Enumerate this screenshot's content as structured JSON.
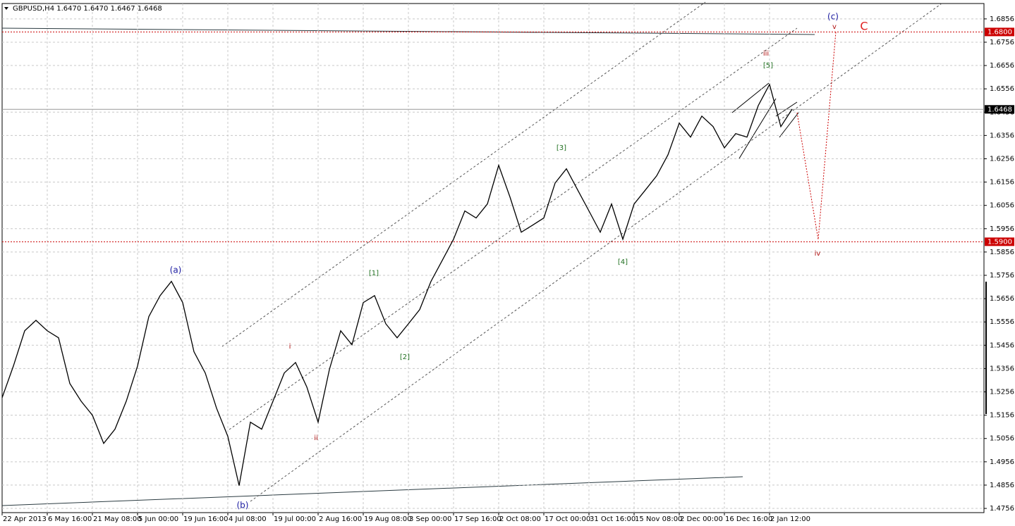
{
  "chart_data": {
    "type": "line",
    "title": "GBPUSD,H4  1.6470 1.6470 1.6467 1.6468",
    "categories": [
      "22 Apr 2013",
      null,
      null,
      null,
      "6 May 16:00",
      null,
      null,
      null,
      "21 May 08:00",
      null,
      null,
      null,
      "5 Jun 00:00",
      null,
      null,
      null,
      "19 Jun 16:00",
      null,
      null,
      null,
      "4 Jul 08:00",
      null,
      null,
      null,
      "19 Jul 00:00",
      null,
      null,
      null,
      "2 Aug 16:00",
      null,
      null,
      null,
      "19 Aug 08:00",
      null,
      null,
      null,
      "3 Sep 00:00",
      null,
      null,
      null,
      "17 Sep 16:00",
      null,
      null,
      null,
      "2 Oct 08:00",
      null,
      null,
      null,
      "17 Oct 00:00",
      null,
      null,
      null,
      "31 Oct 16:00",
      null,
      null,
      null,
      "15 Nov 08:00",
      null,
      null,
      null,
      "2 Dec 00:00",
      null,
      null,
      null,
      "16 Dec 16:00",
      null,
      null,
      null,
      "2 Jan 12:00",
      null,
      null,
      null,
      null,
      null,
      null,
      null,
      null,
      null,
      null,
      null,
      null,
      null,
      null,
      null,
      null,
      null,
      null,
      null
    ],
    "series": [
      {
        "name": "GBPUSD",
        "color": "#000000",
        "values": [
          1.5231,
          1.5367,
          1.5518,
          1.5563,
          1.5518,
          1.5488,
          1.5292,
          1.5216,
          1.5156,
          1.5035,
          1.5096,
          1.5216,
          1.5367,
          1.5579,
          1.5669,
          1.573,
          1.5639,
          1.5428,
          1.5337,
          1.5186,
          1.5065,
          1.4854,
          1.5126,
          1.5096,
          1.5216,
          1.5337,
          1.5382,
          1.5277,
          1.5126,
          1.5352,
          1.5518,
          1.5458,
          1.5639,
          1.5669,
          1.5548,
          1.5488,
          1.5548,
          1.5609,
          1.573,
          1.582,
          1.5911,
          1.6032,
          1.6002,
          1.6062,
          1.6228,
          1.6092,
          1.5941,
          1.5971,
          1.6002,
          1.6152,
          1.6213,
          1.6122,
          1.6032,
          1.5941,
          1.6062,
          1.5911,
          1.6062,
          1.6122,
          1.6183,
          1.6273,
          1.6409,
          1.6349,
          1.6439,
          1.6394,
          1.6303,
          1.6364,
          1.6349,
          1.6484,
          1.6575,
          1.6394,
          1.6469,
          null,
          null,
          null,
          null,
          null,
          null,
          null,
          null,
          null,
          null,
          null,
          null,
          null,
          null,
          null,
          null,
          null
        ]
      }
    ],
    "ylim": [
      1.4738,
      1.6922
    ],
    "yticks": [
      1.6856,
      1.6756,
      1.6656,
      1.6556,
      1.6456,
      1.6356,
      1.6256,
      1.6156,
      1.6056,
      1.5956,
      1.5856,
      1.5756,
      1.5656,
      1.5556,
      1.5456,
      1.5356,
      1.5256,
      1.5156,
      1.5056,
      1.4956,
      1.4856,
      1.4756
    ],
    "grid": true,
    "levels": [
      {
        "value": 1.68,
        "label": "1.6800",
        "color": "#cc0000"
      },
      {
        "value": 1.59,
        "label": "1.5900",
        "color": "#cc0000"
      }
    ],
    "current_price": 1.6468,
    "annotations": [
      {
        "text": "(a)",
        "color": "#1a1aa0"
      },
      {
        "text": "(b)",
        "color": "#1a1aa0"
      },
      {
        "text": "(c)",
        "color": "#1a1aa0"
      },
      {
        "text": "i",
        "color": "#b01010"
      },
      {
        "text": "ii",
        "color": "#b01010"
      },
      {
        "text": "iii",
        "color": "#b01010"
      },
      {
        "text": "iv",
        "color": "#b01010"
      },
      {
        "text": "v",
        "color": "#b01010"
      },
      {
        "text": "C",
        "color": "#e02020"
      },
      {
        "text": "[1]",
        "color": "#207020"
      },
      {
        "text": "[2]",
        "color": "#207020"
      },
      {
        "text": "[3]",
        "color": "#207020"
      },
      {
        "text": "[4]",
        "color": "#207020"
      },
      {
        "text": "[5]",
        "color": "#207020"
      }
    ]
  }
}
